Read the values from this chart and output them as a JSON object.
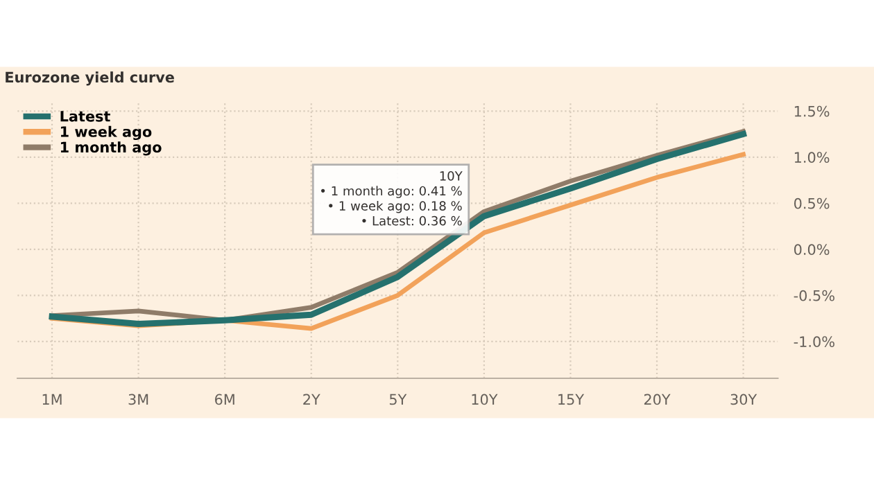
{
  "chart_data": {
    "type": "line",
    "title": "Eurozone yield curve",
    "categories": [
      "1M",
      "3M",
      "6M",
      "2Y",
      "5Y",
      "10Y",
      "15Y",
      "20Y",
      "30Y"
    ],
    "series": [
      {
        "name": "Latest",
        "color": "#25716e",
        "values": [
          -0.73,
          -0.81,
          -0.77,
          -0.71,
          -0.3,
          0.36,
          0.66,
          0.98,
          1.25
        ]
      },
      {
        "name": "1 week ago",
        "color": "#f2a25a",
        "values": [
          -0.75,
          -0.83,
          -0.77,
          -0.86,
          -0.5,
          0.18,
          0.48,
          0.78,
          1.03
        ]
      },
      {
        "name": "1 month ago",
        "color": "#8f7c69",
        "values": [
          -0.72,
          -0.67,
          -0.77,
          -0.63,
          -0.25,
          0.41,
          0.74,
          1.02,
          1.28
        ]
      }
    ],
    "ylim": [
      -1.4,
      1.6
    ],
    "yticks": [
      {
        "value": -1.0,
        "label": "-1.0%"
      },
      {
        "value": -0.5,
        "label": "-0.5%"
      },
      {
        "value": 0.0,
        "label": "0.0%"
      },
      {
        "value": 0.5,
        "label": "0.5%"
      },
      {
        "value": 1.0,
        "label": "1.0%"
      },
      {
        "value": 1.5,
        "label": "1.5%"
      }
    ],
    "grid": true,
    "legend": "top left",
    "annotations": [
      "10Y",
      "• 1 month ago: 0.41 %",
      "• 1 week ago: 0.18 %",
      "• Latest: 0.36 %"
    ]
  }
}
